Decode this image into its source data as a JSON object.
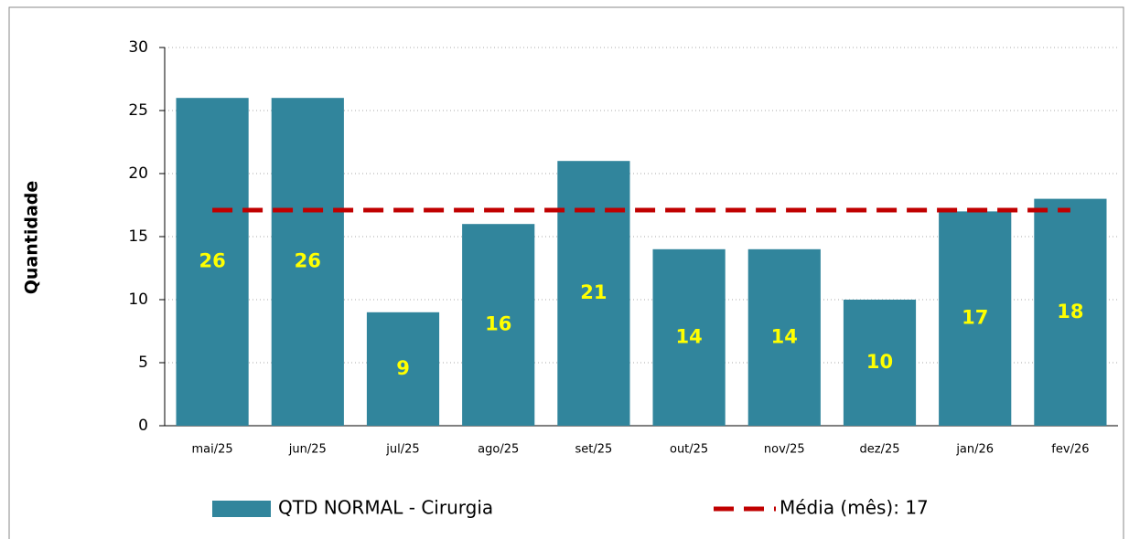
{
  "chart_data": {
    "type": "bar",
    "y_label": "Quantidade",
    "categories": [
      "mai/25",
      "jun/25",
      "jul/25",
      "ago/25",
      "set/25",
      "out/25",
      "nov/25",
      "dez/25",
      "jan/26",
      "fev/26"
    ],
    "series": [
      {
        "name": "QTD NORMAL - Cirurgia",
        "color": "#31859c",
        "values": [
          26,
          26,
          9,
          16,
          21,
          14,
          14,
          10,
          17,
          18
        ]
      },
      {
        "name": "Média (mês): 17",
        "color": "#c00000",
        "type": "line",
        "values": [
          17.1,
          17.1,
          17.1,
          17.1,
          17.1,
          17.1,
          17.1,
          17.1,
          17.1,
          17.1
        ]
      }
    ],
    "ylim": [
      0,
      30
    ],
    "yticks": [
      0,
      5,
      10,
      15,
      20,
      25,
      30
    ],
    "grid": true,
    "legend": "bottom"
  }
}
